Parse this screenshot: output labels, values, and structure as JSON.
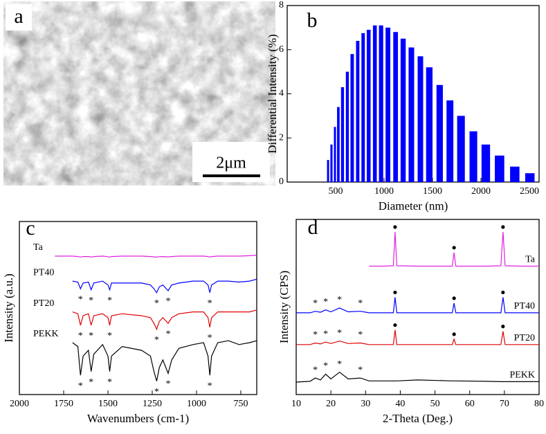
{
  "image_panel": {
    "panel_label": "a",
    "scale_bar": "2μm"
  },
  "chart_data": [
    {
      "type": "bar",
      "panel_label": "b",
      "xlabel": "Diameter (nm)",
      "ylabel": "Differential Intensity (%)",
      "color": "#0000ff",
      "x": [
        422,
        457,
        493,
        528,
        571,
        621,
        671,
        728,
        784,
        841,
        905,
        969,
        1040,
        1119,
        1197,
        1282,
        1375,
        1467,
        1574,
        1680,
        1794,
        1922,
        2050,
        2192,
        2349,
        2505
      ],
      "values": [
        1.0,
        1.7,
        2.5,
        3.4,
        4.3,
        5.0,
        5.8,
        6.4,
        6.75,
        6.9,
        7.1,
        7.1,
        7.0,
        6.8,
        6.5,
        6.1,
        5.7,
        5.2,
        4.4,
        3.7,
        3.0,
        2.3,
        1.7,
        1.2,
        0.7,
        0.4
      ],
      "xlim": [
        0,
        2600
      ],
      "xticks": [
        500,
        1000,
        1500,
        2000,
        2500
      ],
      "ylim": [
        0,
        8
      ],
      "yticks": [
        0,
        2,
        4,
        6,
        8
      ]
    },
    {
      "type": "line",
      "panel_label": "c",
      "xlabel": "Wavenumbers (cm-1)",
      "ylabel": "Intensity (a.u.)",
      "x": [
        2000,
        1800,
        1700,
        1670,
        1655,
        1640,
        1610,
        1595,
        1580,
        1530,
        1500,
        1490,
        1480,
        1420,
        1310,
        1260,
        1240,
        1225,
        1210,
        1190,
        1160,
        1140,
        1100,
        1020,
        960,
        935,
        925,
        915,
        880,
        820,
        760,
        700,
        660
      ],
      "xlim": [
        2000,
        660
      ],
      "xticks": [
        2000,
        1750,
        1500,
        1250,
        1000,
        750
      ],
      "ylim": [
        10,
        100
      ],
      "peak_marker": "*",
      "marked_peaks": [
        1655,
        1595,
        1490,
        1225,
        1160,
        925
      ],
      "series": [
        {
          "name": "Ta",
          "color": "#e020e0",
          "values": [
            null,
            82,
            82,
            81.8,
            81.5,
            81.8,
            81.8,
            81.5,
            81.8,
            82,
            81.7,
            81.5,
            81.8,
            82,
            82,
            81.8,
            81.6,
            81.5,
            81.7,
            81.8,
            81.6,
            81.8,
            82,
            82,
            82,
            81.8,
            81.5,
            81.8,
            82,
            82,
            82,
            82.2,
            82.5
          ]
        },
        {
          "name": "PT40",
          "color": "#0000ff",
          "values": [
            null,
            null,
            69,
            68.5,
            65,
            68,
            68.5,
            64.5,
            68,
            69,
            67,
            64.5,
            68,
            68,
            68,
            67,
            65,
            63,
            66,
            67,
            64,
            67,
            68,
            69,
            69,
            67,
            63,
            67,
            69,
            69,
            68.5,
            69,
            70
          ]
        },
        {
          "name": "PT20",
          "color": "#e00000",
          "values": [
            null,
            null,
            53,
            52,
            46,
            51,
            52,
            46,
            51,
            52,
            50,
            46,
            51,
            52,
            51,
            50,
            47,
            44,
            48,
            50,
            47,
            50,
            52,
            53,
            53,
            50,
            45,
            50,
            53,
            53,
            53,
            53,
            54
          ]
        },
        {
          "name": "PEKK",
          "color": "#000000",
          "values": [
            null,
            null,
            37,
            35,
            20,
            30,
            33,
            22,
            31,
            36,
            30,
            22,
            30,
            35,
            33,
            30,
            22,
            17,
            24,
            28,
            21,
            28,
            34,
            36,
            37,
            30,
            20,
            30,
            37,
            38,
            36,
            37,
            38
          ]
        }
      ]
    },
    {
      "type": "line",
      "panel_label": "d",
      "xlabel": "2-Theta (Deg.)",
      "ylabel": "Intensity (CPS)",
      "x": [
        10,
        14,
        15.5,
        17,
        18.5,
        20,
        22.5,
        25,
        28.5,
        31,
        35,
        38,
        38.5,
        39,
        45,
        55,
        55.5,
        56,
        65,
        69,
        69.6,
        70.2,
        75,
        80
      ],
      "xlim": [
        10,
        80
      ],
      "xticks": [
        10,
        20,
        30,
        40,
        50,
        60,
        70,
        80
      ],
      "ylim": [
        10,
        100
      ],
      "peak_marker": "*",
      "polymer_peaks": [
        15.5,
        18.5,
        22.5,
        28.5
      ],
      "crystal_peaks": [
        38.5,
        55.5,
        69.6
      ],
      "series": [
        {
          "name": "Ta",
          "color": "#e020e0",
          "values": [
            null,
            null,
            null,
            null,
            null,
            null,
            null,
            null,
            null,
            76,
            76,
            76.2,
            93.6,
            76.2,
            76,
            76,
            83,
            76,
            76,
            76.2,
            93.6,
            76.2,
            76,
            76
          ]
        },
        {
          "name": "PT40",
          "color": "#0000ff",
          "values": [
            52,
            52,
            52.8,
            52.3,
            53.5,
            52.5,
            54.5,
            52.5,
            52.8,
            52,
            52,
            52,
            60,
            52,
            52,
            52,
            57,
            52,
            52,
            52,
            60,
            52,
            52,
            52
          ]
        },
        {
          "name": "PT20",
          "color": "#e00000",
          "values": [
            35.7,
            35.7,
            36.5,
            36,
            37,
            36.2,
            37.5,
            36.2,
            36.5,
            35.7,
            35.7,
            35.7,
            43.2,
            35.7,
            35.7,
            35.7,
            38.5,
            35.7,
            35.7,
            35.7,
            42.5,
            35.7,
            35.7,
            35.7
          ]
        },
        {
          "name": "PEKK",
          "color": "#000000",
          "values": [
            16.4,
            16.8,
            18.5,
            17.5,
            20.5,
            18,
            21.5,
            18,
            18.5,
            17,
            17,
            17,
            17,
            17,
            17.5,
            17,
            17,
            17,
            16.8,
            16.6,
            16.6,
            16.6,
            16.6,
            16.6
          ]
        }
      ]
    }
  ]
}
